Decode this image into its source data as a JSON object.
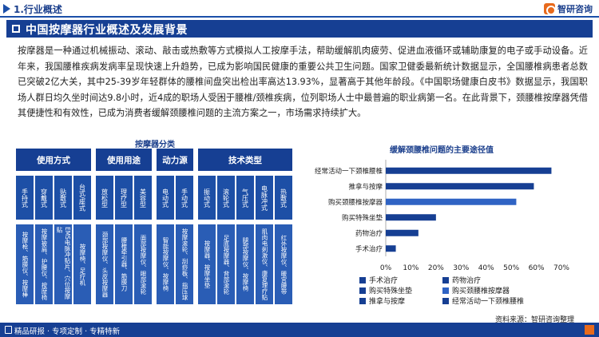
{
  "header": {
    "section": "1.行业概述",
    "logo_text": "智研咨询"
  },
  "banner": {
    "title": "中国按摩器行业概述及发展背景"
  },
  "intro": "按摩器是一种通过机械振动、滚动、敲击或热敷等方式模拟人工按摩手法，帮助缓解肌肉疲劳、促进血液循环或辅助康复的电子或手动设备。近年来，我国腰椎疾病发病率呈现快速上升趋势，已成为影响国民健康的重要公共卫生问题。国家卫健委最新统计数据显示，全国腰椎病患者总数已突破2亿大关，其中25-39岁年轻群体的腰椎间盘突出检出率高达13.93%，显著高于其他年龄段。《中国职场健康白皮书》数据显示，我国职场人群日均久坐时间达9.8小时，近4成的职场人受困于腰椎/颈椎疾病，位列职场人士中最普遍的职业病第一名。在此背景下，颈腰椎按摩器凭借其便捷性和有效性，已成为消费者缓解颈腰椎问题的主流方案之一，市场需求持续扩大。",
  "diagram": {
    "title": "按摩器分类",
    "categories": [
      "使用方式",
      "使用用途",
      "动力源",
      "技术类型"
    ],
    "types": [
      "手持式",
      "穿戴式",
      "贴敷式",
      "台式/座式",
      "放松型",
      "理疗型",
      "美容型",
      "电动式",
      "手动式",
      "振动式",
      "滚轮式",
      "气压式",
      "电脉冲式",
      "热敷式"
    ],
    "descs": [
      "按摩枪、筋膜仪、按摩棒",
      "按摩披肩、护腰仪、按摩椅",
      "EMS电脉冲贴片、穴位按摩贴",
      "按摩椅、足疗机",
      "颈部按摩仪、头皮按摩器",
      "腰椎牵引器、筋膜刀",
      "面部按摩仪、眼部滚轮",
      "智能按摩仪、按摩椅",
      "按摩滚轮、刮痧板、指压球",
      "按摩器、按摩坐垫",
      "足底按摩器、背部滚轮",
      "腿部按摩仪、按摩椅",
      "肌肉电刺激仪、康复理疗贴",
      "红外按摩仪、暖宫腰带"
    ]
  },
  "chart_data": {
    "type": "bar",
    "orientation": "horizontal",
    "title": "缓解颈腰椎问题的主要途径值",
    "categories": [
      "经常活动一下颈椎腰椎",
      "推拿与按摩",
      "购买颈腰椎按摩器",
      "购买特殊坐垫",
      "药物治疗",
      "手术治疗"
    ],
    "values": [
      66,
      59,
      52,
      20,
      13,
      4
    ],
    "colors": [
      "#163f93",
      "#163f93",
      "#2f63c4",
      "#163f93",
      "#163f93",
      "#163f93"
    ],
    "xlim": [
      0,
      70
    ],
    "xticks": [
      "0%",
      "10%",
      "20%",
      "30%",
      "40%",
      "50%",
      "60%",
      "70%"
    ],
    "legend": [
      {
        "label": "手术治疗",
        "color": "#163f93"
      },
      {
        "label": "药物治疗",
        "color": "#163f93"
      },
      {
        "label": "购买特殊坐垫",
        "color": "#163f93"
      },
      {
        "label": "购买颈腰椎按摩器",
        "color": "#2f63c4"
      },
      {
        "label": "推拿与按摩",
        "color": "#163f93"
      },
      {
        "label": "经常活动一下颈椎腰椎",
        "color": "#163f93"
      }
    ]
  },
  "source": "资料来源：智研咨询整理",
  "footer": {
    "text": "精品研报 · 专项定制 · 专精特新"
  }
}
